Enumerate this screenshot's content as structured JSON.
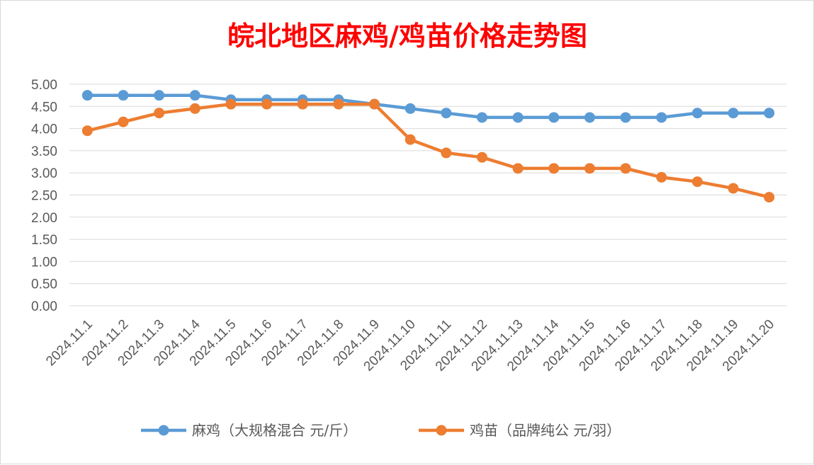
{
  "chart_data": {
    "type": "line",
    "title": "皖北地区麻鸡/鸡苗价格走势图",
    "title_color": "#ff0000",
    "xlabel": "",
    "ylabel": "",
    "ylim": [
      0,
      5
    ],
    "ytick_step": 0.5,
    "ytick_labels": [
      "0.00",
      "0.50",
      "1.00",
      "1.50",
      "2.00",
      "2.50",
      "3.00",
      "3.50",
      "4.00",
      "4.50",
      "5.00"
    ],
    "grid": true,
    "legend_position": "bottom",
    "categories": [
      "2024.11.1",
      "2024.11.2",
      "2024.11.3",
      "2024.11.4",
      "2024.11.5",
      "2024.11.6",
      "2024.11.7",
      "2024.11.8",
      "2024.11.9",
      "2024.11.10",
      "2024.11.11",
      "2024.11.12",
      "2024.11.13",
      "2024.11.14",
      "2024.11.15",
      "2024.11.16",
      "2024.11.17",
      "2024.11.18",
      "2024.11.19",
      "2024.11.20"
    ],
    "series": [
      {
        "name": "麻鸡（大规格混合 元/斤）",
        "color": "#5b9bd5",
        "values": [
          4.75,
          4.75,
          4.75,
          4.75,
          4.65,
          4.65,
          4.65,
          4.65,
          4.55,
          4.45,
          4.35,
          4.25,
          4.25,
          4.25,
          4.25,
          4.25,
          4.25,
          4.35,
          4.35,
          4.35
        ]
      },
      {
        "name": "鸡苗（品牌纯公 元/羽）",
        "color": "#ed7d31",
        "values": [
          3.95,
          4.15,
          4.35,
          4.45,
          4.55,
          4.55,
          4.55,
          4.55,
          4.55,
          3.75,
          3.45,
          3.35,
          3.1,
          3.1,
          3.1,
          3.1,
          2.9,
          2.8,
          2.65,
          2.45
        ]
      }
    ]
  }
}
